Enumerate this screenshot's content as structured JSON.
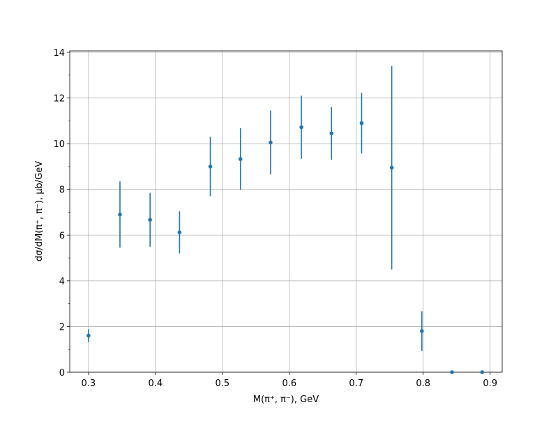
{
  "chart_data": {
    "type": "errorbar",
    "x_label": "M(π⁺, π⁻), GeV",
    "y_label": "dσ/dM(π⁺, π⁻), μb/GeV",
    "x": [
      0.3,
      0.347,
      0.392,
      0.436,
      0.482,
      0.527,
      0.572,
      0.618,
      0.663,
      0.708,
      0.753,
      0.798,
      0.843,
      0.888
    ],
    "values": [
      1.6,
      6.9,
      6.67,
      6.12,
      9.0,
      9.33,
      10.05,
      10.72,
      10.45,
      10.9,
      8.95,
      1.8,
      0,
      0
    ],
    "errors": [
      0.28,
      1.45,
      1.18,
      0.92,
      1.3,
      1.35,
      1.4,
      1.38,
      1.15,
      1.33,
      4.45,
      0.87,
      0,
      0
    ],
    "color": "#1f77b4",
    "xlim": [
      0.272,
      0.918
    ],
    "xticks": [
      0.3,
      0.4,
      0.5,
      0.6,
      0.7,
      0.8,
      0.9
    ],
    "ylim": [
      0,
      14.06
    ],
    "yticks": [
      0,
      2,
      4,
      6,
      8,
      10,
      12,
      14
    ],
    "yminorticks": [
      1,
      3,
      5,
      7,
      9,
      11,
      13
    ],
    "grid": true
  }
}
